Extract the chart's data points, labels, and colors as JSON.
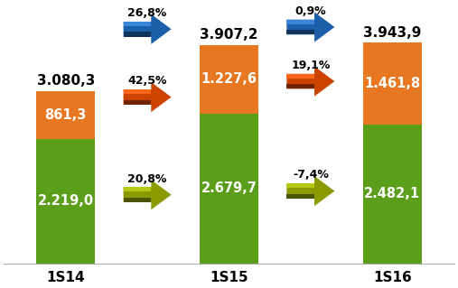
{
  "categories": [
    "1S14",
    "1S15",
    "1S16"
  ],
  "green_values": [
    2219.0,
    2679.7,
    2482.1
  ],
  "orange_values": [
    861.3,
    1227.6,
    1461.8
  ],
  "totals": [
    "3.080,3",
    "3.907,2",
    "3.943,9"
  ],
  "green_labels": [
    "2.219,0",
    "2.679,7",
    "2.482,1"
  ],
  "orange_labels": [
    "861,3",
    "1.227,6",
    "1.461,8"
  ],
  "between_total_pct": [
    "26,8%",
    "0,9%"
  ],
  "between_orange_pct": [
    "42,5%",
    "19,1%"
  ],
  "between_green_pct": [
    "20,8%",
    "-7,4%"
  ],
  "green_color": "#5a9e1a",
  "orange_color": "#e87722",
  "arrow_blue_color": "#1a5fa8",
  "arrow_orange_color": "#cc4400",
  "arrow_yellow_color": "#8a9a00",
  "bar_width": 0.52,
  "bar_positions": [
    0.55,
    2.0,
    3.45
  ],
  "xlim": [
    0.0,
    4.0
  ],
  "ylim": [
    0,
    4600
  ],
  "background_color": "#ffffff",
  "label_fontsize": 10.5,
  "pct_fontsize": 9,
  "total_fontsize": 11,
  "xtick_fontsize": 11
}
